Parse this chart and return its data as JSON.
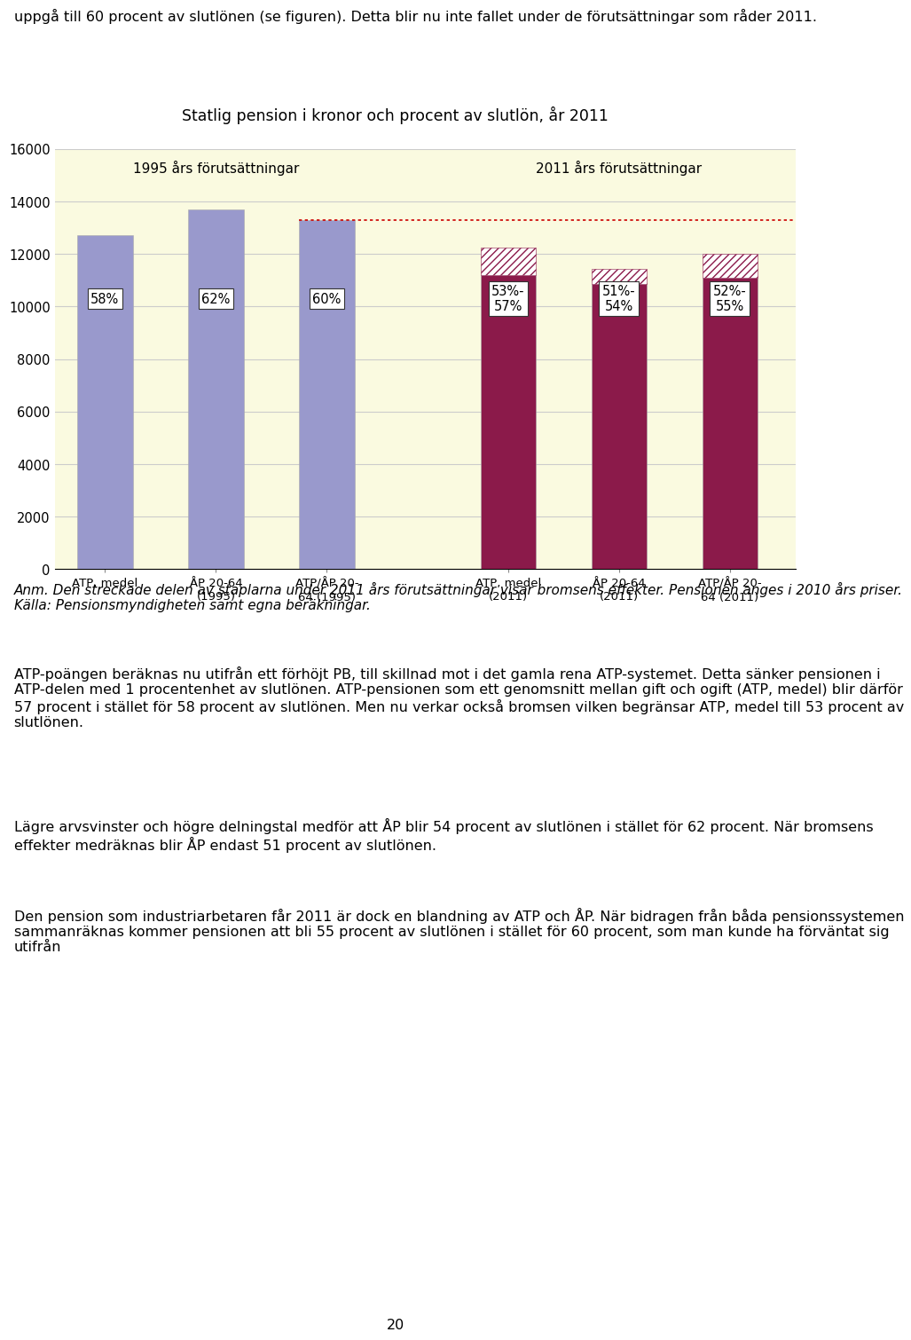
{
  "title": "Statlig pension i kronor och procent av slutlön, år 2011",
  "page_bg": "#FFFFFF",
  "chart_bg": "#FAFAE0",
  "ylim": [
    0,
    16000
  ],
  "yticks": [
    0,
    2000,
    4000,
    6000,
    8000,
    10000,
    12000,
    14000,
    16000
  ],
  "group1_label": "1995 års förutsättningar",
  "group2_label": "2011 års förutsättningar",
  "bars_1995_values": [
    12700,
    13700,
    13300
  ],
  "bars_1995_color": "#9999CC",
  "bars_1995_pct": [
    "58%",
    "62%",
    "60%"
  ],
  "bars_2011_solid": [
    11200,
    10850,
    11100
  ],
  "bars_2011_hatch": [
    1050,
    580,
    900
  ],
  "bars_2011_solid_color": "#8B1A4A",
  "bars_2011_pct": [
    "53%-\n57%",
    "51%-\n54%",
    "52%-\n55%"
  ],
  "dotted_line_y": 13300,
  "dotted_line_color": "#CC0000",
  "x_labels_1995": [
    "ATP, medel",
    "ÅP 20-64\n(1995)",
    "ATP/ÅP 20-\n64 (1995)"
  ],
  "x_labels_2011": [
    "ATP, medel\n(2011)",
    "ÅP 20-64\n(2011)",
    "ATP/ÅP 20-\n64 (2011)"
  ],
  "top_text": "uppgå till 60 procent av slutlönen (se figuren). Detta blir nu inte fallet under de förutsättningar som råder 2011.",
  "note_text": "Anm. Den streckade delen av staplarna under 2011 års förutsättningar visar bromsens effekter. Pensionen anges i 2010 års priser.\nKälla: Pensionsmyndigheten samt egna beräkningar.",
  "para1": "ATP-poängen beräknas nu utifrån ett förhöjt PB, till skillnad mot i det gamla rena ATP-systemet. Detta sänker pensionen i ATP-delen med 1 procentenhet av slutlönen. ATP-pensionen som ett genomsnitt mellan gift och ogift (ATP, medel) blir därför 57 procent i stället för 58 procent av slutlönen. Men nu verkar också bromsen vilken begränsar ATP, medel till 53 procent av slutlönen.",
  "para2": "Lägre arvsvinster och högre delningstal medför att ÅP blir 54 procent av slutlönen i stället för 62 procent. När bromsens effekter medräknas blir ÅP endast 51 procent av slutlönen.",
  "para3": "Den pension som industriarbetaren får 2011 är dock en blandning av ATP och ÅP. När bidragen från båda pensionssystemen sammanräknas kommer pensionen att bli 55 procent av slutlönen i stället för 60 procent, som man kunde ha förväntat sig utifrån",
  "page_number": "20"
}
